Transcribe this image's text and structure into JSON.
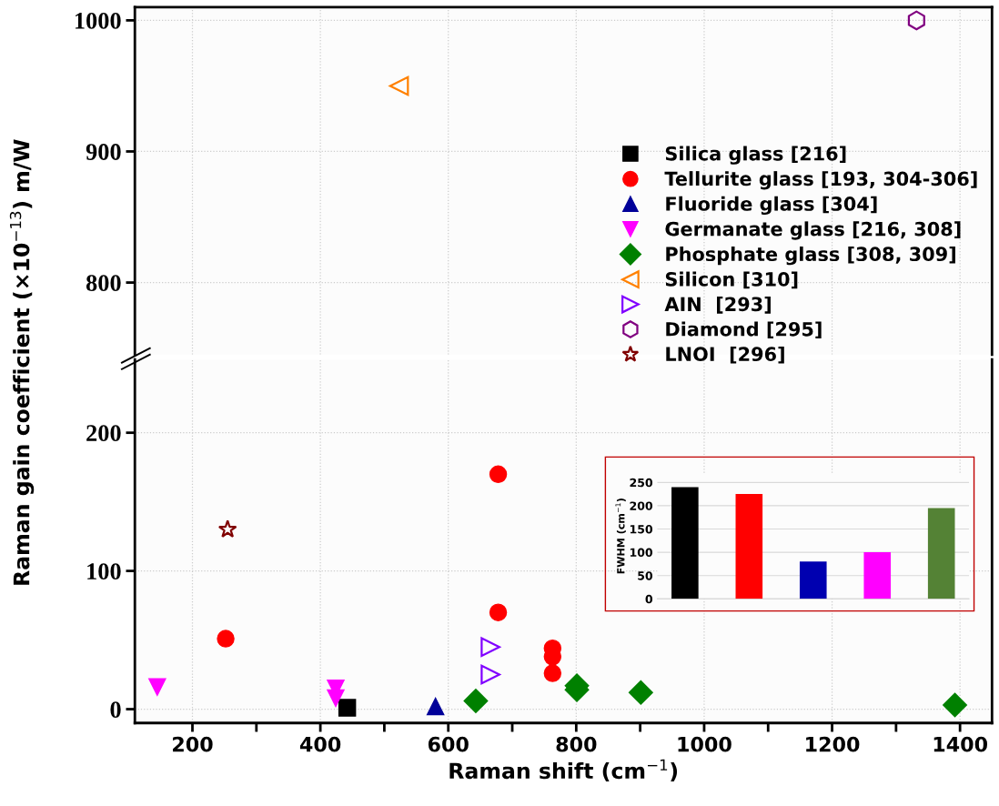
{
  "chart_data": [
    {
      "type": "scatter",
      "xlim": [
        110,
        1450
      ],
      "ylim": [
        745,
        1010
      ],
      "yticks": [
        800,
        900,
        1000
      ],
      "tick_labels": "y",
      "grid": true,
      "legend": "right",
      "ylabel": "Raman gain coefficient (×10$^{−13}$) m/W",
      "xticks": [
        200,
        400,
        600,
        800,
        1000,
        1200,
        1400
      ],
      "series": [
        {
          "name": "Silica glass [216]",
          "color": "#000000",
          "marker": "square"
        },
        {
          "name": "Tellurite glass [193, 304-306]",
          "color": "#ff0000",
          "marker": "circle"
        },
        {
          "name": "Fluoride glass [304]",
          "color": "#000099",
          "marker": "triangle"
        },
        {
          "name": "Germanate glass [216, 308]",
          "color": "#ff00ff",
          "marker": "triangle-down"
        },
        {
          "name": "Phosphate glass [308, 309]",
          "color": "#008000",
          "marker": "diamond"
        },
        {
          "name": "Silicon [310]",
          "color": "#ff8000",
          "marker": "triangle-left",
          "x": [
            523
          ],
          "values": [
            950
          ]
        },
        {
          "name": "AIN  [293]",
          "color": "#8000ff",
          "marker": "triangle-right"
        },
        {
          "name": "Diamond [295]",
          "color": "#800080",
          "x": [
            1332
          ],
          "values": [
            1000
          ]
        },
        {
          "name": "LNOI  [296]",
          "color": "#800000",
          "marker": "star"
        }
      ]
    },
    {
      "type": "scatter",
      "xlim": [
        110,
        1450
      ],
      "ylim": [
        -10,
        253
      ],
      "yticks": [
        0,
        100,
        200
      ],
      "grid": true,
      "xlabel": "Raman shift (cm$^{−1}$)",
      "xticks": [
        {
          "value": 200,
          "label": "200"
        },
        {
          "value": 300,
          "label": null
        },
        {
          "value": 400,
          "label": "400"
        },
        {
          "value": 500,
          "label": null
        },
        {
          "value": 600,
          "label": "600"
        },
        {
          "value": 700,
          "label": null
        },
        {
          "value": 800,
          "label": "800"
        },
        {
          "value": 900,
          "label": null
        },
        {
          "value": 1000,
          "label": "1000"
        },
        {
          "value": 1100,
          "label": null
        },
        {
          "value": 1200,
          "label": "1200"
        },
        {
          "value": 1300,
          "label": null
        },
        {
          "value": 1400,
          "label": "1400"
        }
      ],
      "series": [
        {
          "color": "#000000",
          "marker": "square",
          "x": [
            442
          ],
          "values": [
            1
          ]
        },
        {
          "color": "#ff0000",
          "marker": "circle",
          "x": [
            252,
            678,
            678,
            763,
            763,
            763
          ],
          "values": [
            51,
            170,
            70,
            44,
            38,
            26
          ]
        },
        {
          "color": "#000099",
          "marker": "triangle",
          "x": [
            580
          ],
          "values": [
            2
          ]
        },
        {
          "color": "#ff00ff",
          "marker": "triangle-down",
          "x": [
            145,
            424,
            424
          ],
          "values": [
            16,
            15,
            8
          ]
        },
        {
          "color": "#008000",
          "marker": "diamond",
          "x": [
            643,
            801,
            801,
            901,
            1392
          ],
          "values": [
            6,
            17,
            14,
            12,
            3
          ]
        },
        {
          "color": "#8000ff",
          "marker": "triangle-right",
          "x": [
            666,
            666
          ],
          "values": [
            45,
            25
          ]
        },
        {
          "color": "#800000",
          "marker": "star",
          "x": [
            255
          ],
          "values": [
            130
          ]
        }
      ]
    },
    {
      "type": "bar",
      "categories": [
        null,
        null,
        null,
        null,
        null
      ],
      "values": [
        240,
        225,
        80,
        100,
        195
      ],
      "colors": [
        "#000000",
        "#ff0000",
        "#0000b0",
        "#ff00ff",
        "#548235"
      ],
      "ylim": [
        0,
        270
      ],
      "yticks": [
        0,
        50,
        100,
        150,
        200,
        250
      ],
      "grid": "y",
      "ylabel": "FWHM (cm$^{−1}$)"
    }
  ]
}
